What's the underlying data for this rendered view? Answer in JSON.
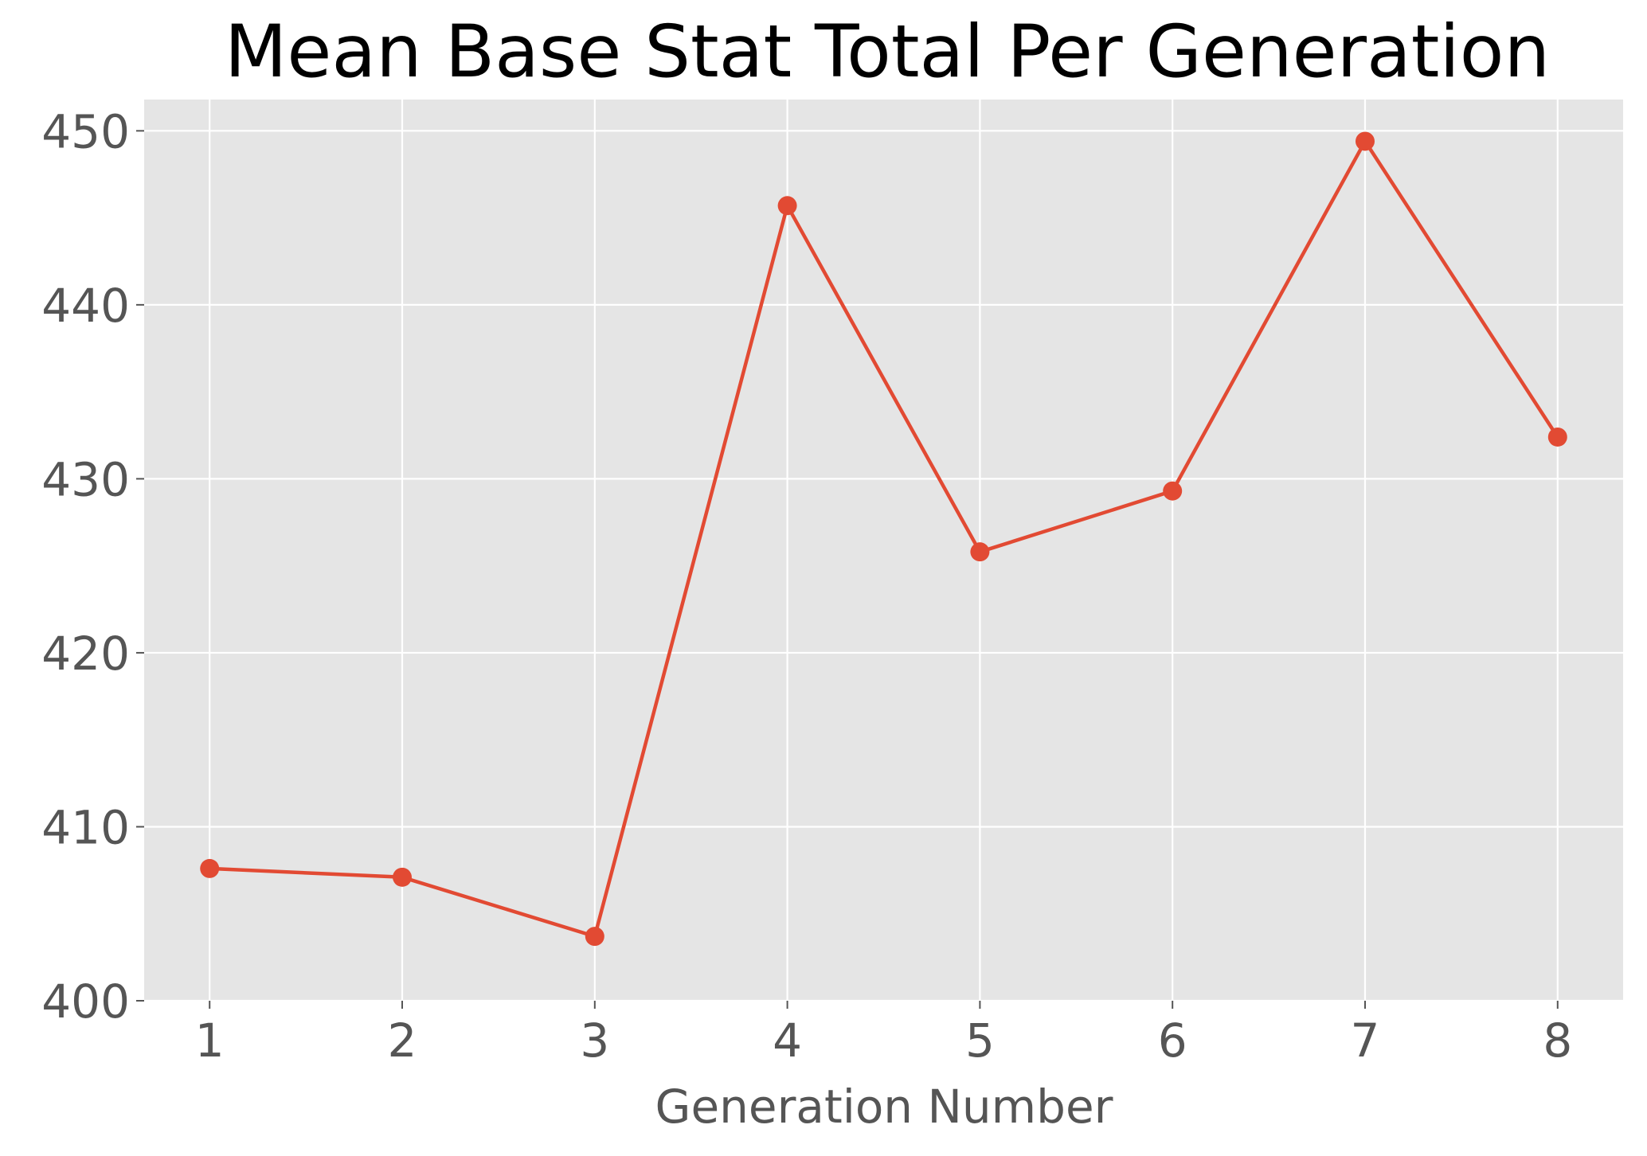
{
  "chart_data": {
    "type": "line",
    "title": "Mean Base Stat Total Per Generation",
    "xlabel": "Generation Number",
    "ylabel": "",
    "x": [
      1,
      2,
      3,
      4,
      5,
      6,
      7,
      8
    ],
    "x_tick_labels": [
      "1",
      "2",
      "3",
      "4",
      "5",
      "6",
      "7",
      "8"
    ],
    "y_ticks": [
      400,
      410,
      420,
      430,
      440,
      450
    ],
    "y_tick_labels": [
      "400",
      "410",
      "420",
      "430",
      "440",
      "450"
    ],
    "xlim": [
      0.66,
      8.34
    ],
    "ylim": [
      400,
      451.8
    ],
    "series": [
      {
        "values": [
          407.6,
          407.1,
          403.7,
          445.7,
          425.8,
          429.3,
          449.4,
          432.4
        ],
        "marker": "circle",
        "color": "#E24A33"
      }
    ],
    "grid": true,
    "legend": "none",
    "style": {
      "plot_background": "#E5E5E5",
      "grid_color": "#FFFFFF",
      "line_color": "#E24A33",
      "tick_color": "#555555"
    }
  }
}
